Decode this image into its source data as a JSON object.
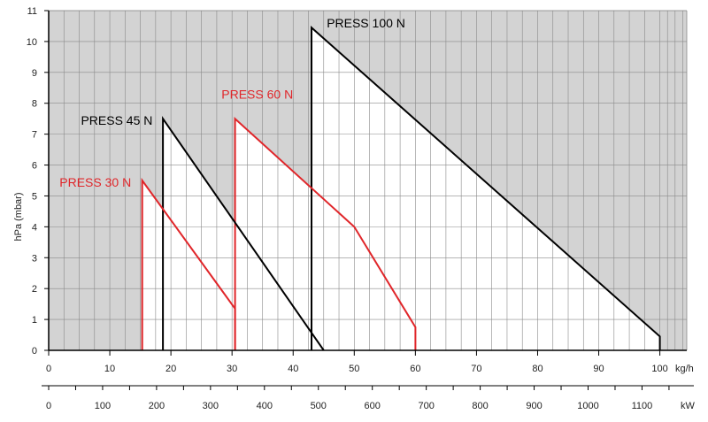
{
  "chart_data": {
    "type": "area",
    "ylabel": "hPa (mbar)",
    "x_unit": "kg/h",
    "x2_unit": "kW",
    "xlim": [
      0,
      100
    ],
    "ylim": [
      0,
      11
    ],
    "x_ticks": [
      0,
      10,
      20,
      30,
      40,
      50,
      60,
      70,
      80,
      90,
      100
    ],
    "y_ticks": [
      0,
      1,
      2,
      3,
      4,
      5,
      6,
      7,
      8,
      9,
      10,
      11
    ],
    "x2_lim": [
      0,
      1200
    ],
    "x2_ticks": [
      0,
      100,
      200,
      300,
      400,
      500,
      600,
      700,
      800,
      900,
      1000,
      1100
    ],
    "grid": true,
    "colors": {
      "background": "#d3d3d3",
      "region": "#ffffff",
      "grid": "#8a8a8a",
      "black_series": "#000000",
      "red_series": "#e0262a"
    },
    "series": [
      {
        "name": "PRESS 100 N",
        "color": "#000000",
        "label_at": [
          45.5,
          10.45
        ],
        "label_anchor": "start",
        "points": [
          [
            43,
            0
          ],
          [
            43,
            10.45
          ],
          [
            100,
            0.45
          ],
          [
            100,
            0
          ]
        ]
      },
      {
        "name": "PRESS 60 N",
        "color": "#e0262a",
        "label_at": [
          40,
          8.15
        ],
        "label_anchor": "end",
        "points": [
          [
            30.5,
            0
          ],
          [
            30.5,
            7.5
          ],
          [
            50,
            4
          ],
          [
            60,
            0.75
          ],
          [
            60,
            0
          ]
        ]
      },
      {
        "name": "PRESS 45 N",
        "color": "#000000",
        "label_at": [
          17,
          7.3
        ],
        "label_anchor": "end",
        "points": [
          [
            18.7,
            0
          ],
          [
            18.7,
            7.5
          ],
          [
            45,
            0
          ]
        ]
      },
      {
        "name": "PRESS 30 N",
        "color": "#e0262a",
        "label_at": [
          13.5,
          5.3
        ],
        "label_anchor": "end",
        "points": [
          [
            15.3,
            0
          ],
          [
            15.3,
            5.5
          ],
          [
            30.5,
            1.35
          ],
          [
            30.5,
            0
          ]
        ]
      }
    ]
  }
}
